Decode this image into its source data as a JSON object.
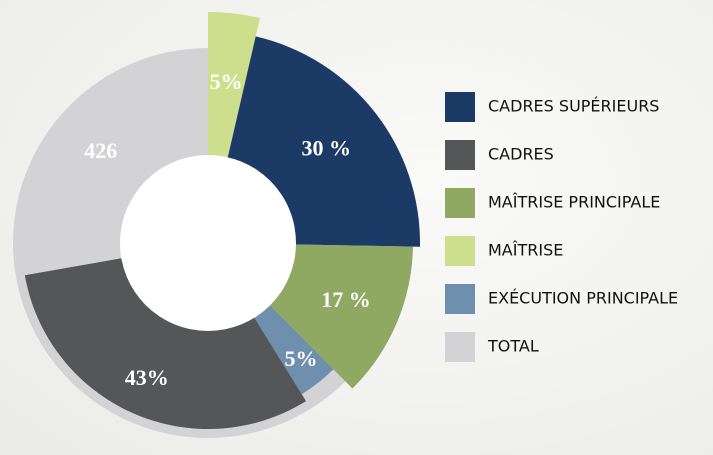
{
  "chart_data": {
    "type": "pie",
    "categories": [
      "MAÎTRISE",
      "CADRES SUPÉRIEURS",
      "MAÎTRISE PRINCIPALE",
      "EXÉCUTION PRINCIPALE",
      "CADRES"
    ],
    "values": [
      5,
      30,
      17,
      5,
      43
    ],
    "value_labels": [
      "5%",
      "30 %",
      "17 %",
      "5%",
      "43%"
    ],
    "colors": [
      "#cddf8c",
      "#1b3a66",
      "#8fa862",
      "#6e8fad",
      "#555658"
    ],
    "total": {
      "name": "TOTAL",
      "value": 426,
      "color": "#d3d3d5"
    },
    "legend_order": [
      1,
      4,
      2,
      0,
      3
    ]
  }
}
